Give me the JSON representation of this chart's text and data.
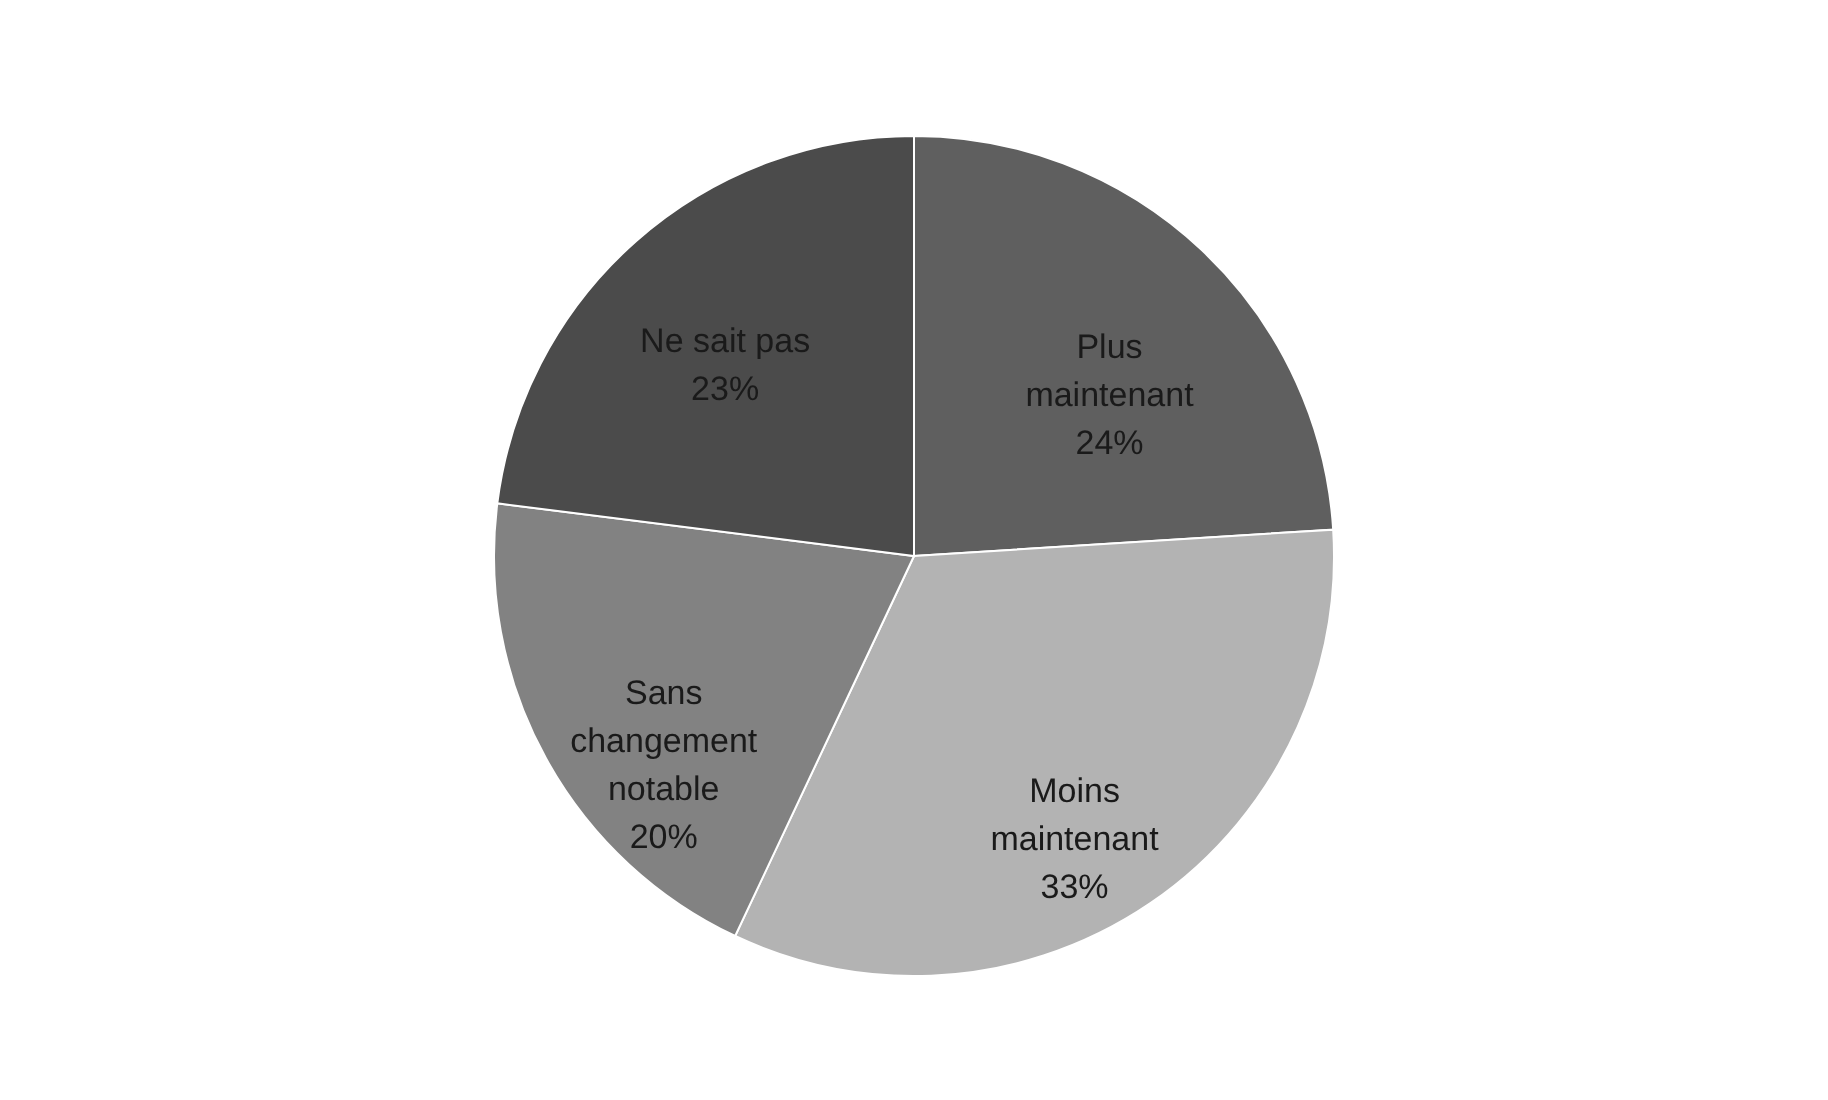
{
  "chart_data": {
    "type": "pie",
    "categories": [
      "Plus maintenant",
      "Moins maintenant",
      "Sans changement notable",
      "Ne sait pas"
    ],
    "values": [
      24,
      33,
      20,
      23
    ],
    "value_labels": [
      "24%",
      "33%",
      "20%",
      "23%"
    ],
    "colors": [
      "#5f5f5f",
      "#b3b3b3",
      "#828282",
      "#4b4b4b"
    ]
  }
}
